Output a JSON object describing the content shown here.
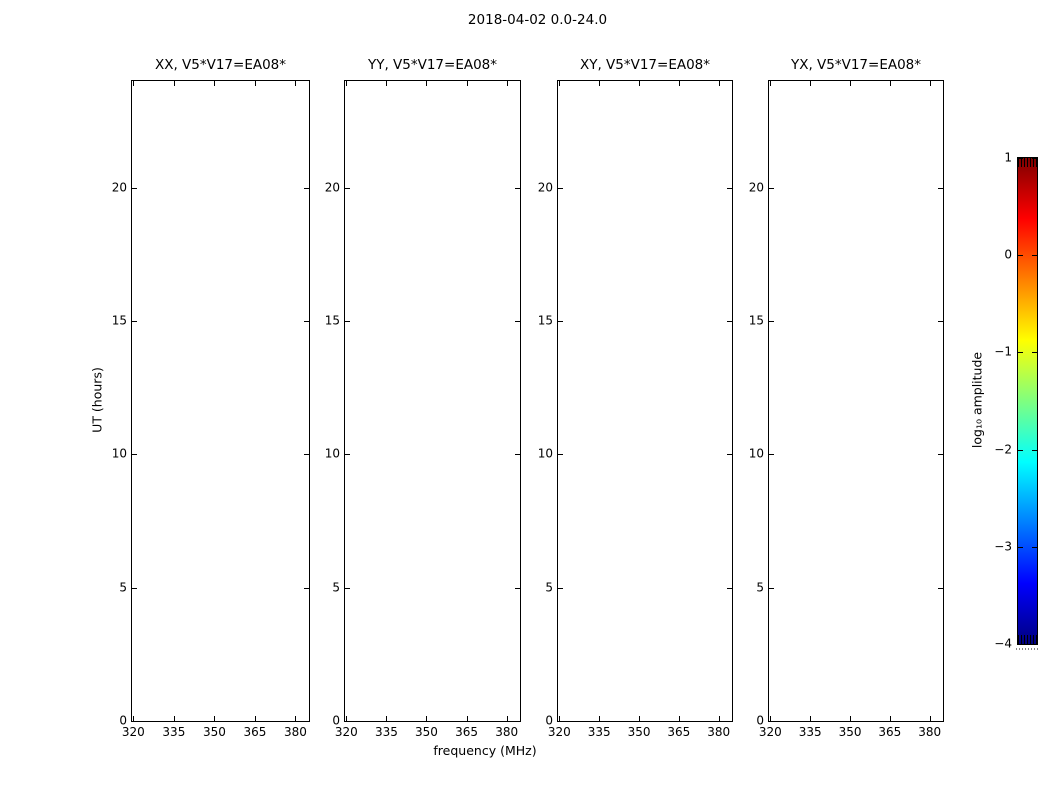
{
  "chart_data": {
    "type": "heatmap",
    "title": "2018-04-02 0.0-24.0",
    "xlabel": "frequency (MHz)",
    "ylabel": "UT (hours)",
    "panels": [
      {
        "title": "XX, V5*V17=EA08*"
      },
      {
        "title": "YY, V5*V17=EA08*"
      },
      {
        "title": "XY, V5*V17=EA08*"
      },
      {
        "title": "YX, V5*V17=EA08*"
      }
    ],
    "x_ticks": [
      320,
      335,
      350,
      365,
      380
    ],
    "xlim": [
      319.5,
      385.0
    ],
    "y_ticks": [
      0,
      5,
      10,
      15,
      20
    ],
    "ylim": [
      0,
      24
    ],
    "grid": false,
    "values": "no data plotted — all four panels are blank white",
    "colorbar": {
      "label": "log₁₀ amplitude",
      "tick_labels": [
        "1",
        "0",
        "−1",
        "−2",
        "−3",
        "−4"
      ],
      "tick_values": [
        1,
        0,
        -1,
        -2,
        -3,
        -4
      ],
      "vmax": 1,
      "vmin": -4,
      "colormap": "jet",
      "position": "right"
    }
  },
  "colors": {
    "background": "#ffffff",
    "axes": "#000000",
    "jet_top": "#7f0000",
    "jet_bottom": "#00007f"
  }
}
